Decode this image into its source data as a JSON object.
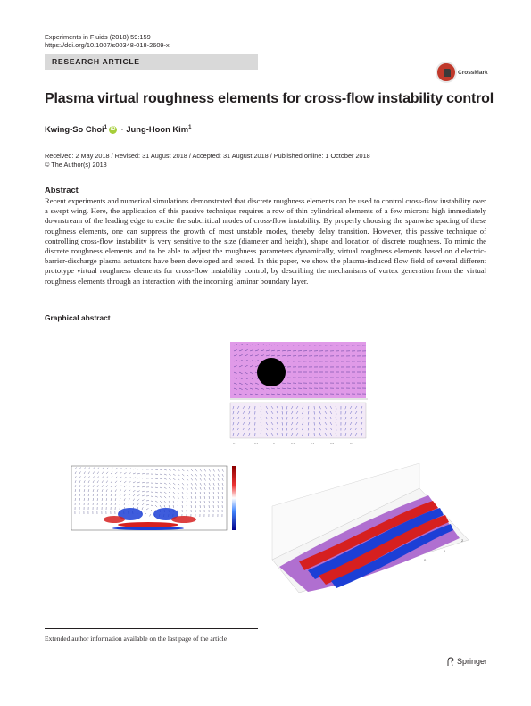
{
  "header": {
    "journal": "Experiments in Fluids (2018) 59:159",
    "doi": "https://doi.org/10.1007/s00348-018-2609-x",
    "article_type": "RESEARCH ARTICLE",
    "crossmark_label": "CrossMark"
  },
  "title": "Plasma virtual roughness elements for cross-flow instability control",
  "authors": {
    "first": "Kwing-So Choi",
    "first_sup": "1",
    "separator": "· ",
    "second": "Jung-Hoon Kim",
    "second_sup": "1"
  },
  "dates": {
    "history": "Received: 2 May 2018 / Revised: 31 August 2018 / Accepted: 31 August 2018 / Published online: 1 October 2018",
    "copyright": "© The Author(s) 2018"
  },
  "abstract": {
    "heading": "Abstract",
    "text": "Recent experiments and numerical simulations demonstrated that discrete roughness elements can be used to control cross-flow instability over a swept wing. Here, the application of this passive technique requires a row of thin cylindrical elements of a few microns high immediately downstream of the leading edge to excite the subcritical modes of cross-flow instability. By properly choosing the spanwise spacing of these roughness elements, one can suppress the growth of most unstable modes, thereby delay transition. However, this passive technique of controlling cross-flow instability is very sensitive to the size (diameter and height), shape and location of discrete roughness. To mimic the discrete roughness elements and to be able to adjust the roughness parameters dynamically, virtual roughness elements based on dielectric-barrier-discharge plasma actuators have been developed and tested. In this paper, we show the plasma-induced flow field of several different prototype virtual roughness elements for cross-flow instability control, by describing the mechanisms of vortex generation from the virtual roughness elements through an interaction with the incoming laminar boundary layer."
  },
  "graphical_abstract_heading": "Graphical abstract",
  "footnote": "Extended author information available on the last page of the article",
  "publisher": "Springer",
  "colors": {
    "band": "#d9d9d9",
    "crossmark_red": "#c0392b",
    "orcid": "#a6ce39",
    "fig_magenta": "#e09ae8",
    "vortex_red": "#d62020",
    "vortex_blue": "#1c3fd6",
    "plate_purple": "#b06fd0"
  }
}
